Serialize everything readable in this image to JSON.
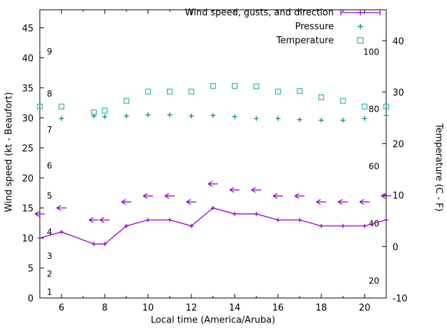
{
  "chart": {
    "x_axis_title": "Local time (America/Aruba)",
    "left_axis_title": "Wind speed (kt - Beaufort)",
    "right_axis_title": "Temperature (C - F)"
  },
  "chart_data": {
    "type": "line",
    "title": "Wind speed, gusts, and direction",
    "x_range": [
      5,
      21
    ],
    "x_ticks": [
      6,
      8,
      10,
      12,
      14,
      16,
      18,
      20
    ],
    "x_minor_ticks": [
      7,
      9,
      11,
      13,
      15,
      17,
      19
    ],
    "left_axis": {
      "label": "Wind speed (kt - Beaufort)",
      "range": [
        0,
        48
      ],
      "ticks": [
        0,
        5,
        10,
        15,
        20,
        25,
        30,
        35,
        40,
        45
      ]
    },
    "right_axis": {
      "label": "Temperature (C - F)",
      "range": [
        -10,
        46
      ],
      "ticks": [
        -10,
        0,
        10,
        20,
        30,
        40
      ]
    },
    "beaufort_labels": [
      {
        "label": "1",
        "kt": 1
      },
      {
        "label": "2",
        "kt": 4
      },
      {
        "label": "3",
        "kt": 7
      },
      {
        "label": "4",
        "kt": 11
      },
      {
        "label": "5",
        "kt": 17
      },
      {
        "label": "6",
        "kt": 22
      },
      {
        "label": "7",
        "kt": 28
      },
      {
        "label": "8",
        "kt": 34
      },
      {
        "label": "9",
        "kt": 41
      }
    ],
    "fahrenheit_labels": [
      {
        "label": "20",
        "f": 20
      },
      {
        "label": "40",
        "f": 40
      },
      {
        "label": "60",
        "f": 60
      },
      {
        "label": "80",
        "f": 80
      },
      {
        "label": "100",
        "f": 100
      }
    ],
    "series": [
      {
        "name": "Wind speed",
        "type": "line-points",
        "axis": "left",
        "color": "#9400d3",
        "x": [
          5,
          6,
          7.5,
          8,
          9,
          10,
          11,
          12,
          13,
          14,
          15,
          16,
          17,
          18,
          19,
          20,
          21
        ],
        "values": [
          10,
          11,
          9,
          9,
          12,
          13,
          13,
          12,
          15,
          14,
          14,
          13,
          13,
          12,
          12,
          12,
          13
        ]
      },
      {
        "name": "Wind gusts and direction",
        "type": "arrows",
        "axis": "left",
        "color": "#9400d3",
        "x": [
          5,
          6,
          7.5,
          8,
          9,
          10,
          11,
          12,
          13,
          14,
          15,
          16,
          17,
          18,
          19,
          20,
          21
        ],
        "values": [
          14,
          15,
          13,
          13,
          16,
          17,
          17,
          16,
          19,
          18,
          18,
          17,
          17,
          16,
          16,
          16,
          17
        ]
      },
      {
        "name": "Pressure",
        "type": "plus-points",
        "axis": "left",
        "color": "#008b8b",
        "x": [
          6,
          7.5,
          8,
          9,
          10,
          11,
          12,
          13,
          14,
          15,
          16,
          17,
          18,
          19,
          20,
          21
        ],
        "values": [
          29.9,
          30.3,
          30.2,
          30.3,
          30.5,
          30.5,
          30.3,
          30.4,
          30.2,
          29.9,
          29.9,
          29.7,
          29.6,
          29.6,
          29.9,
          30.4
        ]
      },
      {
        "name": "Temperature",
        "type": "square-points",
        "axis": "right",
        "color": "#3cb8b8",
        "x": [
          5,
          6,
          7.5,
          8,
          9,
          10,
          11,
          12,
          13,
          14,
          15,
          16,
          17,
          18,
          19,
          20,
          21
        ],
        "values": [
          27.2,
          27.2,
          26.1,
          26.4,
          28.3,
          30.1,
          30.1,
          30.1,
          31.2,
          31.2,
          31.1,
          30.1,
          30.2,
          29.0,
          28.3,
          27.2,
          27.2
        ]
      }
    ],
    "legend": [
      {
        "label": "Wind speed, gusts, and direction",
        "marker": "line-plus",
        "color": "#9400d3"
      },
      {
        "label": "Pressure",
        "marker": "plus",
        "color": "#008b8b"
      },
      {
        "label": "Temperature",
        "marker": "square",
        "color": "#3cb8b8"
      }
    ],
    "layout": {
      "grid": false,
      "legend_position": "top-right-inside"
    }
  }
}
